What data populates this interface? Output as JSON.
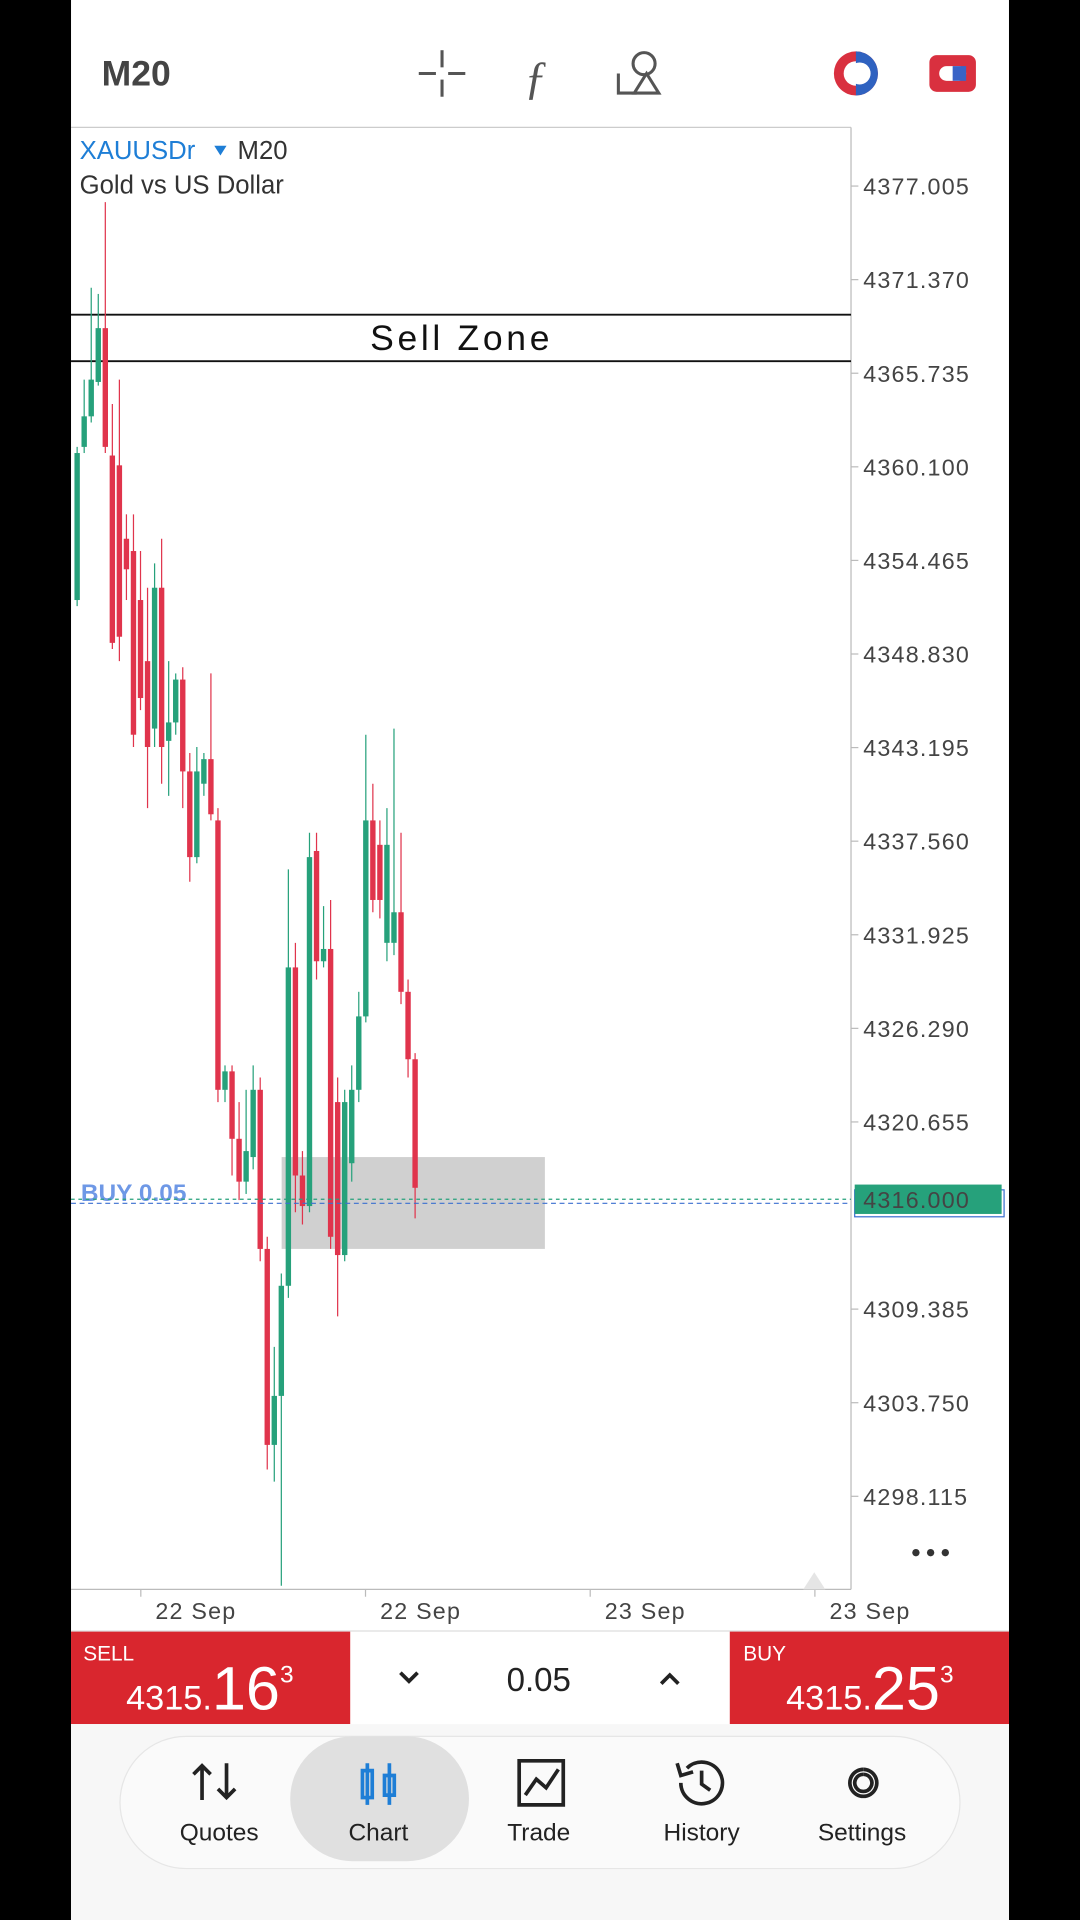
{
  "header": {
    "timeframe": "M20"
  },
  "chart": {
    "type": "candlestick",
    "symbol": "XAUUSDr",
    "timeframe": "M20",
    "description": "Gold vs US Dollar",
    "up_color": "#26a17b",
    "down_color": "#e0344c",
    "ylim": [
      4292.51,
      4380.54
    ],
    "yticks": [
      4377.005,
      {
        "value": 4371.37,
        "label": "4371.370"
      },
      4365.735,
      {
        "value": 4360.1,
        "label": "4360.100"
      },
      4354.465,
      {
        "value": 4348.83,
        "label": "4348.830"
      },
      4343.195,
      {
        "value": 4337.56,
        "label": "4337.560"
      },
      4331.925,
      {
        "value": 4326.29,
        "label": "4326.290"
      },
      4320.655,
      4309.385,
      {
        "value": 4303.75,
        "label": "4303.750"
      },
      4298.115
    ],
    "ohlc": [
      [
        4352.08,
        4361.3,
        4351.71,
        4360.93
      ],
      [
        4361.3,
        4365.35,
        4360.93,
        4363.14
      ],
      [
        4363.14,
        4370.88,
        4362.77,
        4365.35
      ],
      [
        4365.21,
        4370.51,
        4364.99,
        4368.45
      ],
      [
        4368.45,
        4376.04,
        4360.93,
        4361.3
      ],
      [
        4360.78,
        4363.88,
        4349.13,
        4349.5
      ],
      [
        4360.19,
        4365.35,
        4348.4,
        4349.87
      ],
      [
        4355.77,
        4357.24,
        4352.08,
        4353.93
      ],
      [
        4355.03,
        4357.24,
        4343.23,
        4343.97
      ],
      [
        4352.08,
        4355.03,
        4345.45,
        4346.18
      ],
      [
        4348.4,
        4352.82,
        4339.55,
        4343.23
      ],
      [
        4344.34,
        4354.29,
        4343.23,
        4352.82
      ],
      [
        4352.82,
        4355.77,
        4341.02,
        4343.23
      ],
      [
        4343.6,
        4348.4,
        4340.29,
        4344.71
      ],
      [
        4344.71,
        4347.66,
        4343.97,
        4347.29
      ],
      [
        4347.29,
        4348.03,
        4339.55,
        4341.76
      ],
      [
        4341.76,
        4342.87,
        4335.12,
        4336.6
      ],
      [
        4336.6,
        4343.23,
        4336.23,
        4341.76
      ],
      [
        4341.02,
        4342.87,
        4340.29,
        4342.5
      ],
      [
        4342.5,
        4347.66,
        4338.81,
        4339.18
      ],
      [
        4338.81,
        4339.55,
        4321.85,
        4322.59
      ],
      [
        4322.59,
        4324.06,
        4321.85,
        4323.7
      ],
      [
        4323.7,
        4324.06,
        4317.43,
        4319.64
      ],
      [
        4319.64,
        4321.85,
        4315.95,
        4317.06
      ],
      [
        4317.06,
        4322.59,
        4316.32,
        4318.9
      ],
      [
        4318.54,
        4324.06,
        4317.8,
        4322.59
      ],
      [
        4322.59,
        4323.33,
        4312.27,
        4313.01
      ],
      [
        4313.01,
        4313.74,
        4299.73,
        4301.21
      ],
      [
        4301.21,
        4307.11,
        4299.0,
        4304.16
      ],
      [
        4304.16,
        4311.53,
        4292.73,
        4310.79
      ],
      [
        4310.79,
        4335.86,
        4310.06,
        4329.96
      ],
      [
        4329.96,
        4331.44,
        4315.22,
        4317.43
      ],
      [
        4317.43,
        4318.9,
        4314.48,
        4315.59
      ],
      [
        4315.59,
        4338.07,
        4315.22,
        4336.6
      ],
      [
        4336.97,
        4338.07,
        4329.23,
        4330.33
      ],
      [
        4330.33,
        4333.65,
        4329.96,
        4331.07
      ],
      [
        4331.07,
        4334.02,
        4313.01,
        4313.74
      ],
      [
        4321.85,
        4323.33,
        4308.95,
        4312.64
      ],
      [
        4312.64,
        4322.59,
        4312.27,
        4321.85
      ],
      [
        4318.17,
        4324.06,
        4317.06,
        4322.59
      ],
      [
        4322.59,
        4328.49,
        4321.85,
        4327.01
      ],
      [
        4327.01,
        4343.97,
        4326.65,
        4338.81
      ],
      [
        4338.81,
        4341.02,
        4333.28,
        4334.02
      ],
      [
        4337.34,
        4338.81,
        4332.91,
        4334.02
      ],
      [
        4331.44,
        4339.55,
        4330.33,
        4337.34
      ],
      [
        4331.44,
        4344.34,
        4330.7,
        4333.28
      ],
      [
        4333.28,
        4338.07,
        4327.75,
        4328.49
      ],
      [
        4328.49,
        4329.23,
        4323.33,
        4324.43
      ],
      [
        4324.43,
        4324.8,
        4314.85,
        4316.69
      ]
    ],
    "sell_zone": {
      "label": "Sell Zone",
      "top": 4369.26,
      "bottom": 4366.46
    },
    "box": {
      "top": 4318.54,
      "bottom": 4313.01
    },
    "current_price": {
      "value": 4316,
      "label": "4316.000"
    },
    "positions": [
      {
        "label": "BUY 0.05",
        "price": 4315.755
      }
    ],
    "x_labels": [
      "22 Sep",
      "22 Sep",
      "23 Sep",
      "23 Sep"
    ]
  },
  "trade_bar": {
    "sell": {
      "label": "SELL",
      "price_head": "4315.",
      "price_main": "16",
      "price_tail": "3"
    },
    "volume": "0.05",
    "buy": {
      "label": "BUY",
      "price_head": "4315.",
      "price_main": "25",
      "price_tail": "3"
    }
  },
  "nav": {
    "items": [
      "Quotes",
      "Chart",
      "Trade",
      "History",
      "Settings"
    ],
    "active": 1
  }
}
